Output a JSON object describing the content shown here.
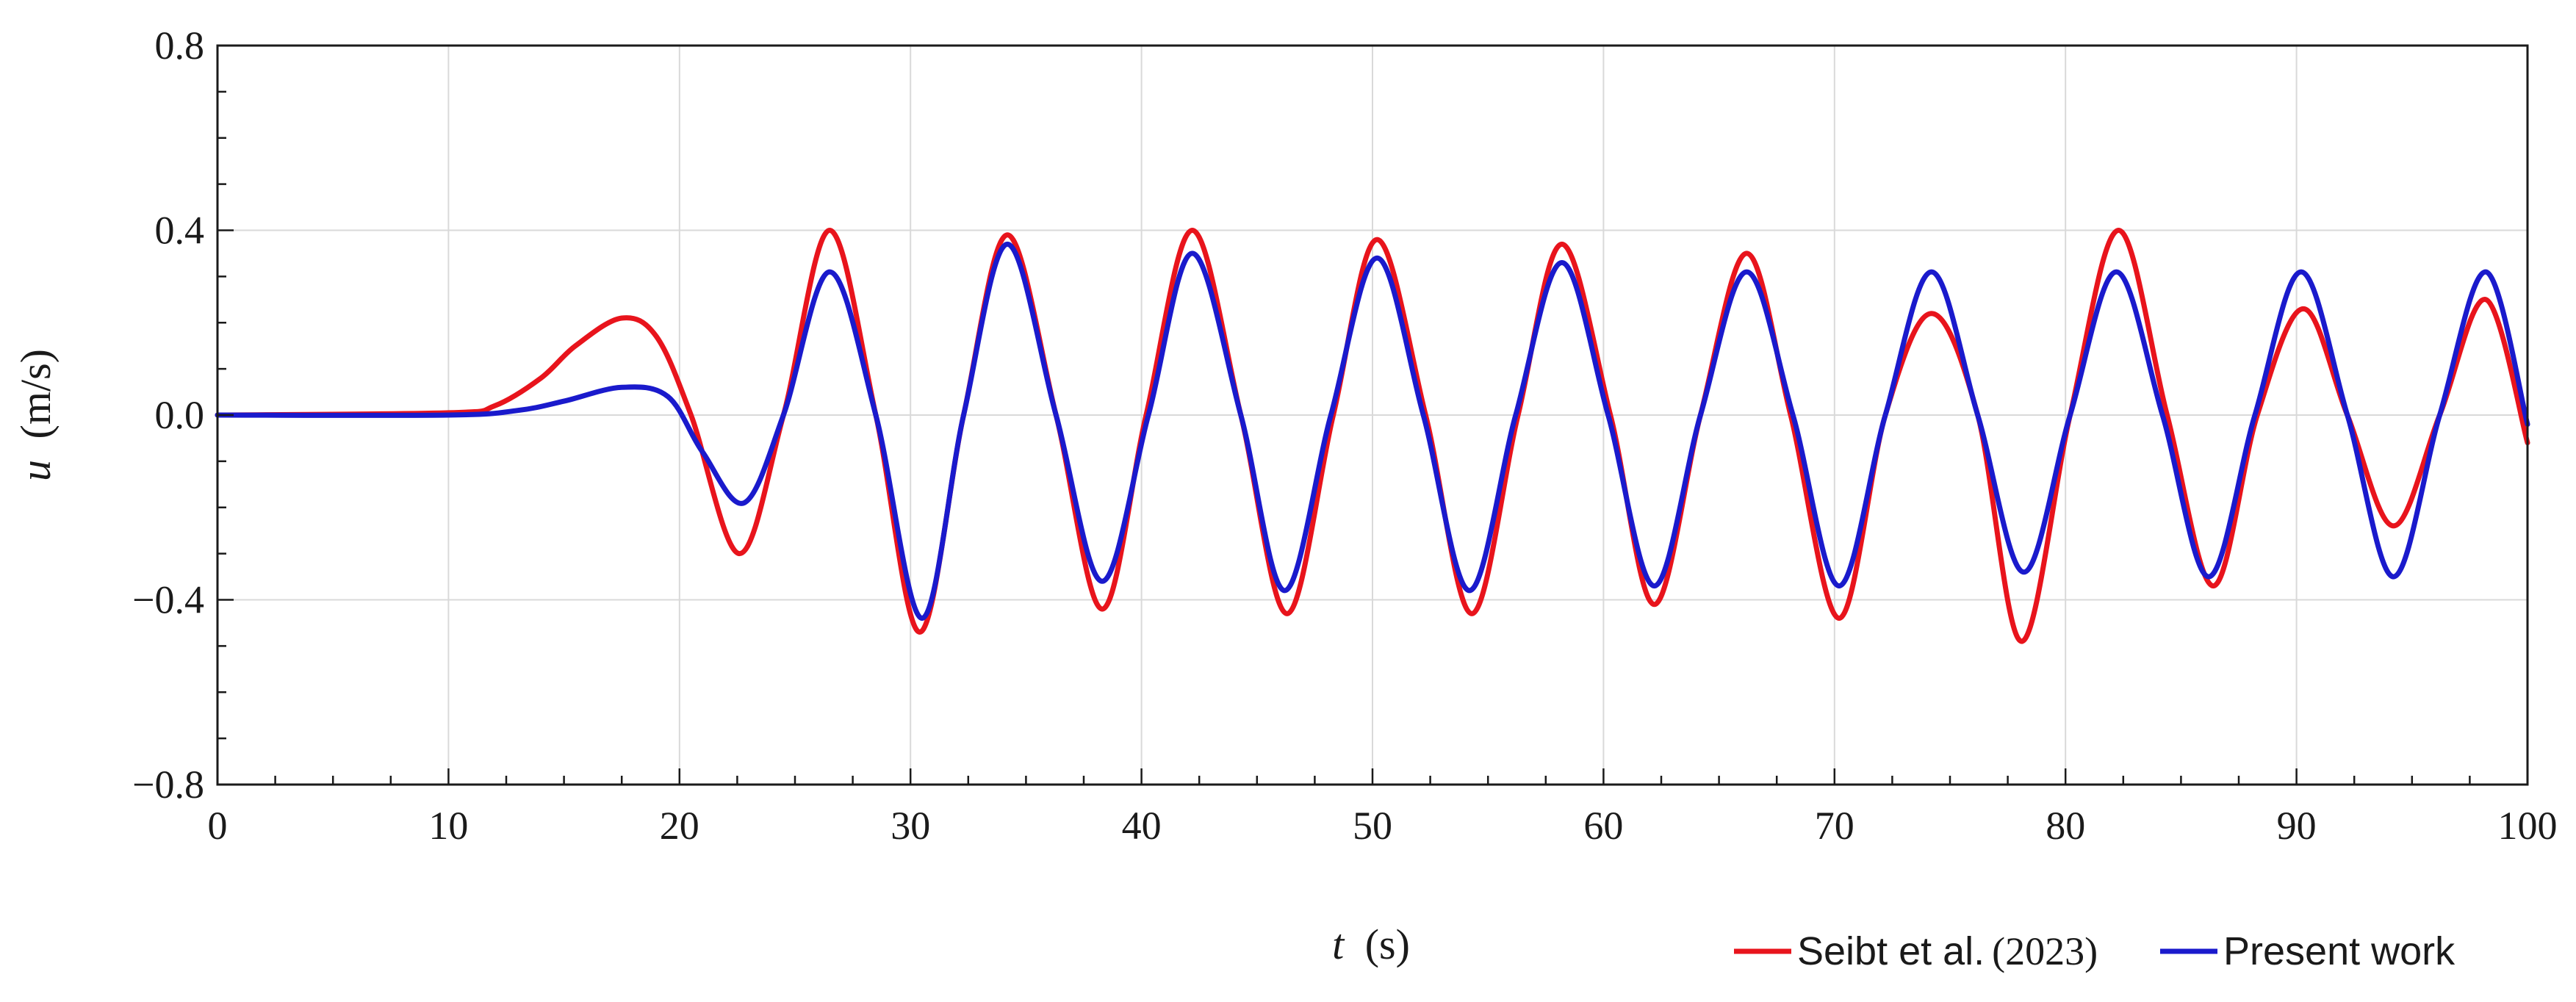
{
  "chart_data": {
    "type": "line",
    "xlabel": {
      "var": "t",
      "unit": "(s)"
    },
    "ylabel": {
      "var": "u",
      "unit": "(m/s)"
    },
    "xlim": [
      0,
      100
    ],
    "ylim": [
      -0.8,
      0.8
    ],
    "x_ticks": [
      0,
      10,
      20,
      30,
      40,
      50,
      60,
      70,
      80,
      90,
      100
    ],
    "x_tick_labels": [
      "0",
      "10",
      "20",
      "30",
      "40",
      "50",
      "60",
      "70",
      "80",
      "90",
      "100"
    ],
    "y_ticks": [
      -0.8,
      -0.4,
      0.0,
      0.4,
      0.8
    ],
    "y_tick_labels": [
      "−0.8",
      "−0.4",
      "0.0",
      "0.4",
      "0.8"
    ],
    "grid": true,
    "legend_position": "bottom-right",
    "series": [
      {
        "name": "Seibt et al.",
        "name_suffix": "(2023)",
        "color": "#e8141c",
        "x": [
          0,
          10,
          12,
          14,
          15.5,
          17.5,
          19,
          20.5,
          22.6,
          24.5,
          26.5,
          28.5,
          30.4,
          32.3,
          34.2,
          36.3,
          38.3,
          40.2,
          42.2,
          44.3,
          46.3,
          48.3,
          50.2,
          52.3,
          54.3,
          56.3,
          58.2,
          60.3,
          62.2,
          64.2,
          66.2,
          68.1,
          70.2,
          72.2,
          74.2,
          76.2,
          78.1,
          80.2,
          82.3,
          84.4,
          86.4,
          88.3,
          90.3,
          92.2,
          94.2,
          96.2,
          98.2,
          100
        ],
        "y": [
          0,
          0.005,
          0.02,
          0.08,
          0.15,
          0.21,
          0.17,
          0.0,
          -0.3,
          0.0,
          0.4,
          0.0,
          -0.47,
          0.0,
          0.39,
          0.0,
          -0.42,
          0.0,
          0.4,
          0.0,
          -0.43,
          0.0,
          0.38,
          0.0,
          -0.43,
          0.0,
          0.37,
          0.0,
          -0.41,
          0.0,
          0.35,
          0.0,
          -0.44,
          0.0,
          0.22,
          0.0,
          -0.49,
          0.0,
          0.4,
          0.0,
          -0.37,
          0.0,
          0.23,
          0.0,
          -0.24,
          0.0,
          0.25,
          -0.06
        ]
      },
      {
        "name": "Present work",
        "color": "#1a1acc",
        "x": [
          0,
          10,
          13,
          15,
          17.5,
          19.5,
          21,
          22.8,
          24.5,
          26.5,
          28.5,
          30.5,
          32.3,
          34.2,
          36.3,
          38.3,
          40.3,
          42.2,
          44.3,
          46.2,
          48.2,
          50.2,
          52.2,
          54.2,
          56.2,
          58.2,
          60.2,
          62.2,
          64.2,
          66.2,
          68.2,
          70.2,
          72.2,
          74.2,
          76.2,
          78.2,
          80.2,
          82.2,
          84.2,
          86.2,
          88.2,
          90.2,
          92.2,
          94.2,
          96.2,
          98.2,
          100
        ],
        "y": [
          0,
          0.0,
          0.01,
          0.03,
          0.06,
          0.04,
          -0.08,
          -0.19,
          0.0,
          0.31,
          0.0,
          -0.44,
          0.0,
          0.37,
          0.0,
          -0.36,
          0.0,
          0.35,
          0.0,
          -0.38,
          0.0,
          0.34,
          0.0,
          -0.38,
          0.0,
          0.33,
          0.0,
          -0.37,
          0.0,
          0.31,
          0.0,
          -0.37,
          0.0,
          0.31,
          0.0,
          -0.34,
          0.0,
          0.31,
          0.0,
          -0.35,
          0.0,
          0.31,
          0.0,
          -0.35,
          0.0,
          0.31,
          -0.02
        ]
      }
    ]
  }
}
